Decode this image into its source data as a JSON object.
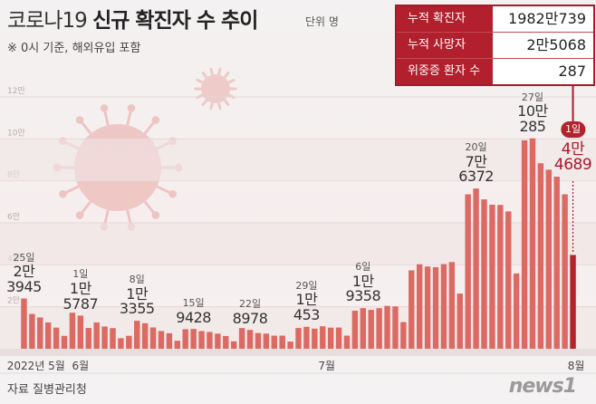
{
  "title": [
    "코로나19",
    "신규 확진자 수 추이"
  ],
  "unit_note": "단위 명",
  "subtitle": "※ 0시 기준, 해외유입 포함",
  "summary_table": [
    [
      "누적 확진자",
      "1982만739"
    ],
    [
      "누적 사망자",
      "2만5068"
    ],
    [
      "위중증 환자 수",
      "287"
    ]
  ],
  "source": "자료 질병관리청",
  "logo": "news1",
  "chart_data": {
    "type": "bar",
    "color": "#dc6a62",
    "latest_color": "#b3232c",
    "grid": true,
    "ylim": [
      0,
      120000
    ],
    "yticks": [
      {
        "value": 20000,
        "label": "2만"
      },
      {
        "value": 40000,
        "label": "4만"
      },
      {
        "value": 60000,
        "label": "6만"
      },
      {
        "value": 80000,
        "label": "8만"
      },
      {
        "value": 100000,
        "label": "10만"
      },
      {
        "value": 120000,
        "label": "12만"
      }
    ],
    "month_labels": [
      "2022년 5월",
      "6월",
      "7월",
      "8월"
    ],
    "categories": [
      "25일",
      null,
      null,
      null,
      null,
      null,
      null,
      "1일",
      null,
      null,
      null,
      null,
      null,
      null,
      "8일",
      null,
      null,
      null,
      null,
      null,
      null,
      "15일",
      null,
      null,
      null,
      null,
      null,
      null,
      "22일",
      null,
      null,
      null,
      null,
      null,
      null,
      "29일",
      null,
      null,
      null,
      null,
      null,
      null,
      "6일",
      null,
      null,
      null,
      null,
      null,
      null,
      null,
      null,
      null,
      null,
      null,
      null,
      null,
      "20일",
      null,
      null,
      null,
      null,
      null,
      null,
      "27일",
      null,
      null,
      null,
      null,
      "1일"
    ],
    "values": [
      23945,
      16584,
      14898,
      12538,
      10058,
      6141,
      17178,
      15787,
      9898,
      12542,
      10605,
      9832,
      5022,
      6171,
      13355,
      12161,
      10154,
      8440,
      7382,
      3825,
      9315,
      9428,
      8405,
      7995,
      7197,
      6068,
      3530,
      9855,
      8978,
      7497,
      7224,
      6233,
      6246,
      3423,
      9896,
      10453,
      9595,
      10715,
      10059,
      10111,
      6254,
      18147,
      19358,
      18511,
      19323,
      20410,
      20189,
      12693,
      37360,
      40266,
      39196,
      38882,
      40342,
      41310,
      26299,
      73582,
      76372,
      71170,
      68632,
      68551,
      65433,
      35883,
      99327,
      100285,
      88384,
      85320,
      82002,
      73589,
      44689
    ],
    "value_labels": [
      "2만\n3945",
      null,
      null,
      null,
      null,
      null,
      null,
      "1만\n5787",
      null,
      null,
      null,
      null,
      null,
      null,
      "1만\n3355",
      null,
      null,
      null,
      null,
      null,
      null,
      "9428",
      null,
      null,
      null,
      null,
      null,
      null,
      "8978",
      null,
      null,
      null,
      null,
      null,
      null,
      "1만\n453",
      null,
      null,
      null,
      null,
      null,
      null,
      "1만\n9358",
      null,
      null,
      null,
      null,
      null,
      null,
      null,
      null,
      null,
      null,
      null,
      null,
      null,
      "7만\n6372",
      null,
      null,
      null,
      null,
      null,
      null,
      "10만\n285",
      null,
      null,
      null,
      null,
      "4만\n4689"
    ]
  }
}
